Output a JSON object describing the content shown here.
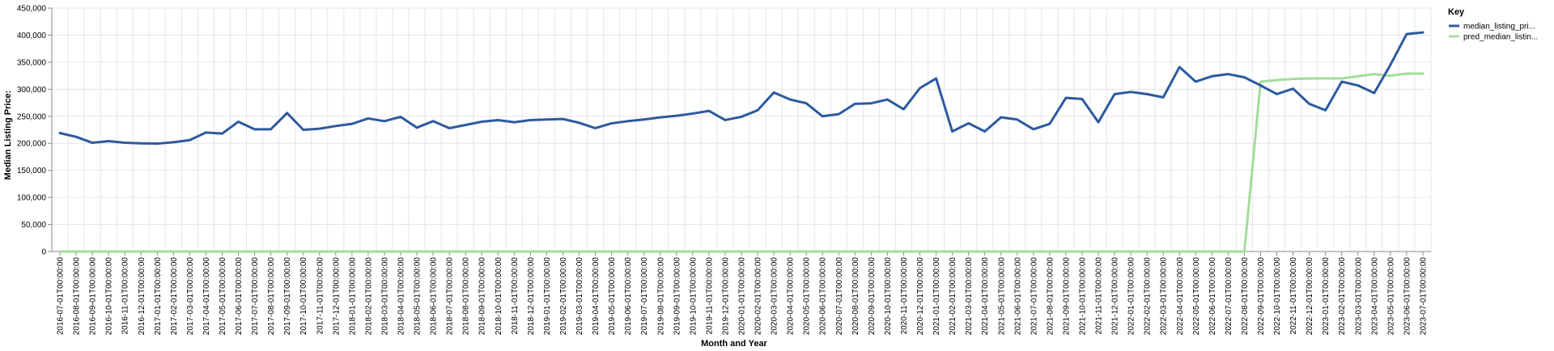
{
  "chart_data": {
    "type": "line",
    "xlabel": "Month and Year",
    "ylabel": "Median Listing Price:",
    "ylim": [
      0,
      450000
    ],
    "yticks": [
      "0",
      "50,000",
      "100,000",
      "150,000",
      "200,000",
      "250,000",
      "300,000",
      "350,000",
      "400,000",
      "450,000"
    ],
    "grid": true,
    "legend": {
      "title": "Key",
      "placement": "top-right"
    },
    "x": [
      "2016-07-01T00:00:00",
      "2016-08-01T00:00:00",
      "2016-09-01T00:00:00",
      "2016-10-01T00:00:00",
      "2016-11-01T00:00:00",
      "2016-12-01T00:00:00",
      "2017-01-01T00:00:00",
      "2017-02-01T00:00:00",
      "2017-03-01T00:00:00",
      "2017-04-01T00:00:00",
      "2017-05-01T00:00:00",
      "2017-06-01T00:00:00",
      "2017-07-01T00:00:00",
      "2017-08-01T00:00:00",
      "2017-09-01T00:00:00",
      "2017-10-01T00:00:00",
      "2017-11-01T00:00:00",
      "2017-12-01T00:00:00",
      "2018-01-01T00:00:00",
      "2018-02-01T00:00:00",
      "2018-03-01T00:00:00",
      "2018-04-01T00:00:00",
      "2018-05-01T00:00:00",
      "2018-06-01T00:00:00",
      "2018-07-01T00:00:00",
      "2018-08-01T00:00:00",
      "2018-09-01T00:00:00",
      "2018-10-01T00:00:00",
      "2018-11-01T00:00:00",
      "2018-12-01T00:00:00",
      "2019-01-01T00:00:00",
      "2019-02-01T00:00:00",
      "2019-03-01T00:00:00",
      "2019-04-01T00:00:00",
      "2019-05-01T00:00:00",
      "2019-06-01T00:00:00",
      "2019-07-01T00:00:00",
      "2019-08-01T00:00:00",
      "2019-09-01T00:00:00",
      "2019-10-01T00:00:00",
      "2019-11-01T00:00:00",
      "2019-12-01T00:00:00",
      "2020-01-01T00:00:00",
      "2020-02-01T00:00:00",
      "2020-03-01T00:00:00",
      "2020-04-01T00:00:00",
      "2020-05-01T00:00:00",
      "2020-06-01T00:00:00",
      "2020-07-01T00:00:00",
      "2020-08-01T00:00:00",
      "2020-09-01T00:00:00",
      "2020-10-01T00:00:00",
      "2020-11-01T00:00:00",
      "2020-12-01T00:00:00",
      "2021-01-01T00:00:00",
      "2021-02-01T00:00:00",
      "2021-03-01T00:00:00",
      "2021-04-01T00:00:00",
      "2021-05-01T00:00:00",
      "2021-06-01T00:00:00",
      "2021-07-01T00:00:00",
      "2021-08-01T00:00:00",
      "2021-09-01T00:00:00",
      "2021-10-01T00:00:00",
      "2021-11-01T00:00:00",
      "2021-12-01T00:00:00",
      "2022-01-01T00:00:00",
      "2022-02-01T00:00:00",
      "2022-03-01T00:00:00",
      "2022-04-01T00:00:00",
      "2022-05-01T00:00:00",
      "2022-06-01T00:00:00",
      "2022-07-01T00:00:00",
      "2022-08-01T00:00:00",
      "2022-09-01T00:00:00",
      "2022-10-01T00:00:00",
      "2022-11-01T00:00:00",
      "2022-12-01T00:00:00",
      "2023-01-01T00:00:00",
      "2023-02-01T00:00:00",
      "2023-03-01T00:00:00",
      "2023-04-01T00:00:00",
      "2023-05-01T00:00:00",
      "2023-06-01T00:00:00",
      "2023-07-01T00:00:00"
    ],
    "series": [
      {
        "name": "median_listing_pri...",
        "color": "#2c5a9e",
        "values": [
          219000,
          212000,
          201000,
          204000,
          201000,
          200000,
          199500,
          202000,
          206000,
          220000,
          218000,
          240000,
          226000,
          226000,
          256000,
          225000,
          227000,
          232000,
          236000,
          246000,
          241000,
          249000,
          229000,
          241000,
          228000,
          234000,
          240000,
          243000,
          239000,
          243000,
          244000,
          245000,
          238000,
          228000,
          237000,
          241000,
          244000,
          248000,
          251000,
          255000,
          260000,
          243000,
          249000,
          261000,
          294000,
          281000,
          274000,
          250000,
          254000,
          273000,
          274000,
          281000,
          263000,
          302000,
          320000,
          222000,
          237000,
          222000,
          248000,
          244000,
          226000,
          236000,
          284000,
          282000,
          239000,
          291000,
          295000,
          291000,
          285000,
          341000,
          314000,
          324000,
          328000,
          322000,
          307000,
          291000,
          301000,
          273000,
          261000,
          314000,
          307000,
          293000,
          345000,
          402000,
          405000
        ]
      },
      {
        "name": "pred_median_listin...",
        "color": "#a3dc9b",
        "values": [
          0,
          0,
          0,
          0,
          0,
          0,
          0,
          0,
          0,
          0,
          0,
          0,
          0,
          0,
          0,
          0,
          0,
          0,
          0,
          0,
          0,
          0,
          0,
          0,
          0,
          0,
          0,
          0,
          0,
          0,
          0,
          0,
          0,
          0,
          0,
          0,
          0,
          0,
          0,
          0,
          0,
          0,
          0,
          0,
          0,
          0,
          0,
          0,
          0,
          0,
          0,
          0,
          0,
          0,
          0,
          0,
          0,
          0,
          0,
          0,
          0,
          0,
          0,
          0,
          0,
          0,
          0,
          0,
          0,
          0,
          0,
          0,
          0,
          0,
          314000,
          317000,
          319000,
          320000,
          320000,
          320000,
          324000,
          328000,
          325000,
          329000,
          329000
        ]
      }
    ]
  }
}
